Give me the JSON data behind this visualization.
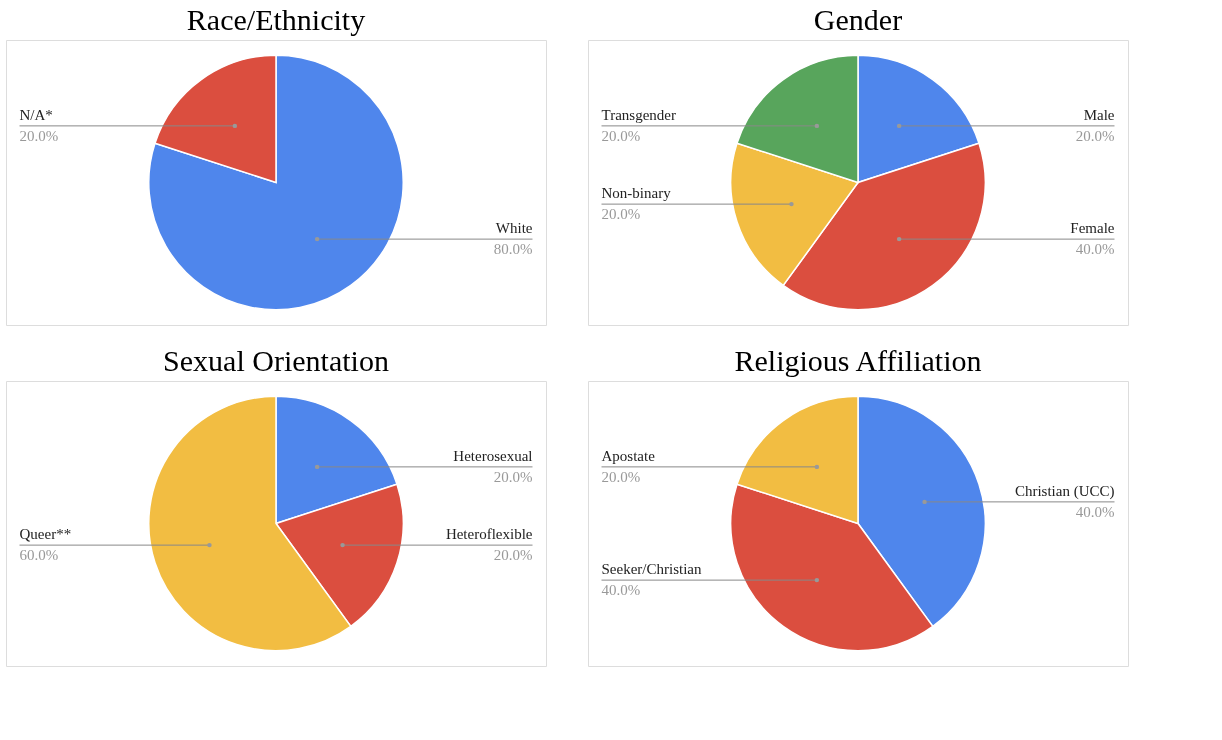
{
  "chart_data": [
    {
      "type": "pie",
      "title": "Race/Ethnicity",
      "categories": [
        "White",
        "N/A*"
      ],
      "values": [
        80,
        20
      ],
      "colors": [
        "#4f86ec",
        "#db4e3f"
      ],
      "value_labels": [
        "80.0%",
        "20.0%"
      ],
      "legend": false
    },
    {
      "type": "pie",
      "title": "Gender",
      "categories": [
        "Male",
        "Female",
        "Non-binary",
        "Transgender"
      ],
      "values": [
        20,
        40,
        20,
        20
      ],
      "colors": [
        "#4f86ec",
        "#db4e3f",
        "#f2bd42",
        "#58a55c"
      ],
      "value_labels": [
        "20.0%",
        "40.0%",
        "20.0%",
        "20.0%"
      ],
      "legend": false
    },
    {
      "type": "pie",
      "title": "Sexual Orientation",
      "categories": [
        "Heterosexual",
        "Heteroflexible",
        "Queer**"
      ],
      "values": [
        20,
        20,
        60
      ],
      "colors": [
        "#4f86ec",
        "#db4e3f",
        "#f2bd42"
      ],
      "value_labels": [
        "20.0%",
        "20.0%",
        "60.0%"
      ],
      "legend": false
    },
    {
      "type": "pie",
      "title": "Religious Affiliation",
      "categories": [
        "Christian (UCC)",
        "Seeker/Christian",
        "Apostate"
      ],
      "values": [
        40,
        40,
        20
      ],
      "colors": [
        "#4f86ec",
        "#db4e3f",
        "#f2bd42"
      ],
      "value_labels": [
        "40.0%",
        "40.0%",
        "20.0%"
      ],
      "legend": false
    }
  ]
}
